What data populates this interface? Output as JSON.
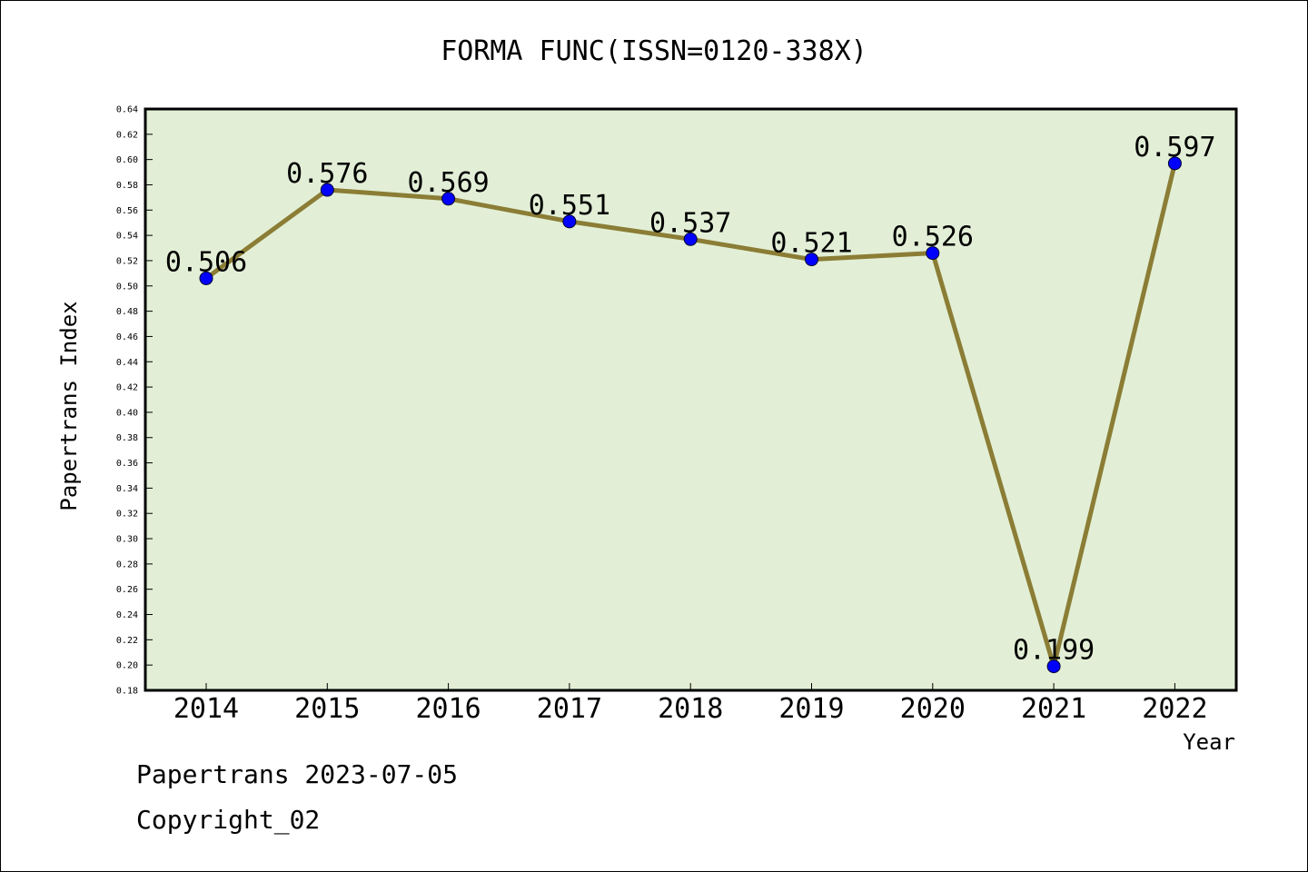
{
  "chart_data": {
    "type": "line",
    "title": "FORMA FUNC(ISSN=0120-338X)",
    "xlabel": "Year",
    "ylabel": "Papertrans Index",
    "categories": [
      "2014",
      "2015",
      "2016",
      "2017",
      "2018",
      "2019",
      "2020",
      "2021",
      "2022"
    ],
    "values": [
      0.506,
      0.576,
      0.569,
      0.551,
      0.537,
      0.521,
      0.526,
      0.199,
      0.597
    ],
    "data_labels": [
      "0.506",
      "0.576",
      "0.569",
      "0.551",
      "0.537",
      "0.521",
      "0.526",
      "0.199",
      "0.597"
    ],
    "ylim": [
      0.18,
      0.64
    ],
    "yticks": [
      "0.18",
      "0.20",
      "0.22",
      "0.24",
      "0.26",
      "0.28",
      "0.30",
      "0.32",
      "0.34",
      "0.36",
      "0.38",
      "0.40",
      "0.42",
      "0.44",
      "0.46",
      "0.48",
      "0.50",
      "0.52",
      "0.54",
      "0.56",
      "0.58",
      "0.60",
      "0.62",
      "0.64"
    ],
    "grid": false,
    "colors": {
      "plot_background": "#e2efd6",
      "line": "#8b7d35",
      "marker": "#0000ff"
    }
  },
  "footer": {
    "source": "Papertrans 2023-07-05",
    "copyright": "Copyright_02"
  }
}
